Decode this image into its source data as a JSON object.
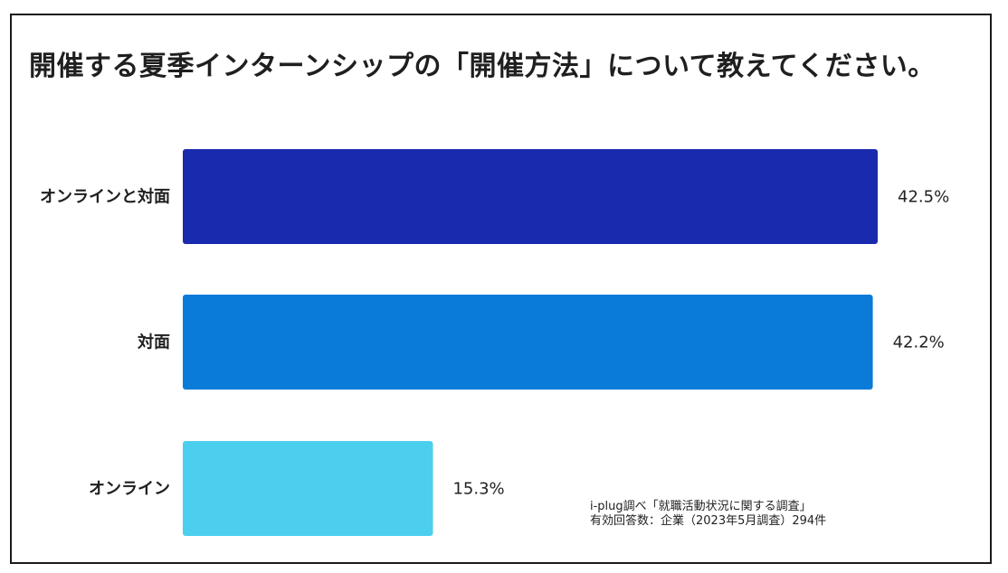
{
  "chart_data": {
    "type": "bar",
    "orientation": "horizontal",
    "title": "開催する夏季インターンシップの「開催方法」について教えてください。",
    "categories": [
      "オンラインと対面",
      "対面",
      "オンライン"
    ],
    "values": [
      42.5,
      42.2,
      15.3
    ],
    "value_labels": [
      "42.5%",
      "42.2%",
      "15.3%"
    ],
    "colors": [
      "#1a2aae",
      "#0a7bd8",
      "#4ccfee"
    ],
    "xlim": [
      0,
      45
    ],
    "xlabel": "",
    "ylabel": "",
    "grid": false,
    "legend": "none"
  },
  "source": {
    "line1": "i-plug調べ「就職活動状況に関する調査」",
    "line2": "有効回答数：企業（2023年5月調査）294件"
  }
}
